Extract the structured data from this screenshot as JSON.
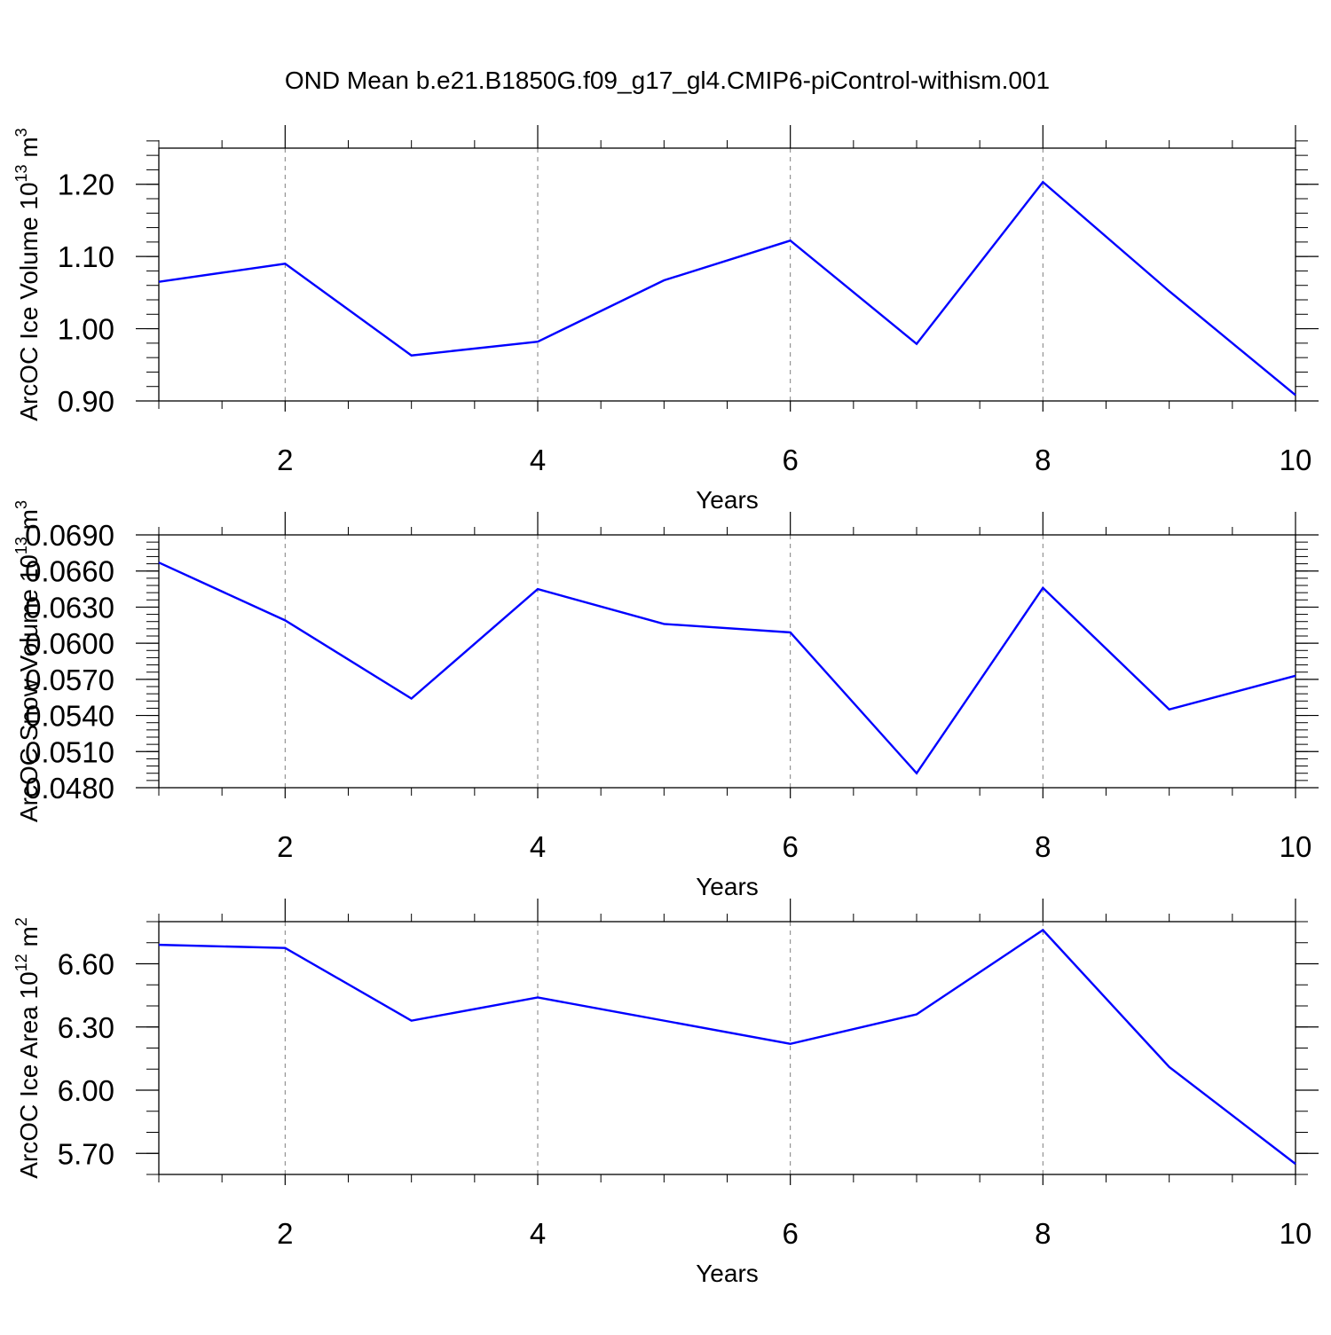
{
  "figure": {
    "title": "OND Mean b.e21.B1850G.f09_g17_gl4.CMIP6-piControl-withism.001"
  },
  "style": {
    "line_color": "#0000ff",
    "grid_color": "#7f7f7f",
    "axis_color": "#000000"
  },
  "chart_data": [
    {
      "type": "line",
      "ylabel": "ArcOC Ice Volume 10",
      "ylabel_sup": "13",
      "ylabel_unit": " m",
      "ylabel_unit_sup": "3",
      "xlabel": "Years",
      "x": [
        1,
        2,
        3,
        4,
        5,
        6,
        7,
        8,
        9,
        10
      ],
      "y": [
        1.065,
        1.09,
        0.963,
        0.982,
        1.067,
        1.122,
        0.979,
        1.203,
        1.052,
        0.908
      ],
      "xlim": [
        1,
        10
      ],
      "ylim": [
        0.9,
        1.25
      ],
      "xticks": [
        "2",
        "4",
        "6",
        "8",
        "10"
      ],
      "xtick_values": [
        2,
        4,
        6,
        8,
        10
      ],
      "yticks": [
        "0.90",
        "1.00",
        "1.10",
        "1.20"
      ],
      "ytick_values": [
        0.9,
        1.0,
        1.1,
        1.2
      ],
      "ytick_minor_step": 0.02,
      "xgrid": true
    },
    {
      "type": "line",
      "ylabel": "ArcOC Snow Volume 10",
      "ylabel_sup": "13",
      "ylabel_unit": " m",
      "ylabel_unit_sup": "3",
      "xlabel": "Years",
      "x": [
        1,
        2,
        3,
        4,
        5,
        6,
        7,
        8,
        9,
        10
      ],
      "y": [
        0.0667,
        0.0619,
        0.0554,
        0.0645,
        0.0616,
        0.0609,
        0.0492,
        0.0646,
        0.0545,
        0.0573
      ],
      "xlim": [
        1,
        10
      ],
      "ylim": [
        0.048,
        0.069
      ],
      "xticks": [
        "2",
        "4",
        "6",
        "8",
        "10"
      ],
      "xtick_values": [
        2,
        4,
        6,
        8,
        10
      ],
      "yticks": [
        "0.0480",
        "0.0510",
        "0.0540",
        "0.0570",
        "0.0600",
        "0.0630",
        "0.0660",
        "0.0690"
      ],
      "ytick_values": [
        0.048,
        0.051,
        0.054,
        0.057,
        0.06,
        0.063,
        0.066,
        0.069
      ],
      "ytick_minor_step": 0.0006,
      "xgrid": true
    },
    {
      "type": "line",
      "ylabel": "ArcOC Ice Area 10",
      "ylabel_sup": "12",
      "ylabel_unit": " m",
      "ylabel_unit_sup": "2",
      "xlabel": "Years",
      "x": [
        1,
        2,
        3,
        4,
        5,
        6,
        7,
        8,
        9,
        10
      ],
      "y": [
        6.69,
        6.675,
        6.33,
        6.44,
        6.33,
        6.22,
        6.36,
        6.76,
        6.11,
        5.65
      ],
      "xlim": [
        1,
        10
      ],
      "ylim": [
        5.6,
        6.8
      ],
      "xticks": [
        "2",
        "4",
        "6",
        "8",
        "10"
      ],
      "xtick_values": [
        2,
        4,
        6,
        8,
        10
      ],
      "yticks": [
        "5.70",
        "6.00",
        "6.30",
        "6.60"
      ],
      "ytick_values": [
        5.7,
        6.0,
        6.3,
        6.6
      ],
      "ytick_minor_step": 0.1,
      "xgrid": true
    }
  ]
}
